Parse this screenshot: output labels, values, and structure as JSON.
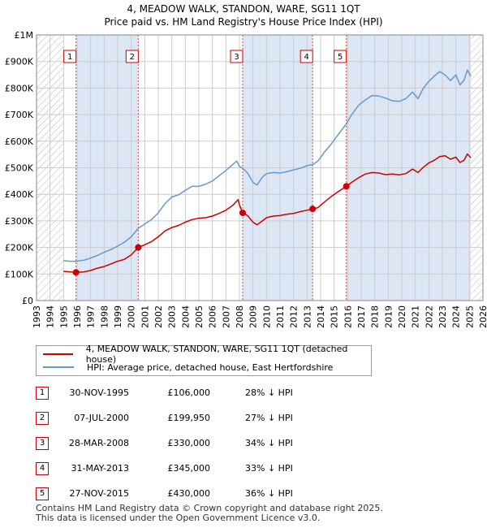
{
  "title_line1": "4, MEADOW WALK, STANDON, WARE, SG11 1QT",
  "title_line2": "Price paid vs. HM Land Registry's House Price Index (HPI)",
  "colors": {
    "property": "#cc0000",
    "hpi": "#6699cc",
    "shade": "#dde6f4",
    "grid": "#cccccc",
    "hatch": "#b8b8b8"
  },
  "legend": {
    "property_label": "4, MEADOW WALK, STANDON, WARE, SG11 1QT (detached house)",
    "hpi_label": "HPI: Average price, detached house, East Hertfordshire"
  },
  "sales": [
    {
      "num": "1",
      "date": "30-NOV-1995",
      "price": "£106,000",
      "hpi": "28% ↓ HPI"
    },
    {
      "num": "2",
      "date": "07-JUL-2000",
      "price": "£199,950",
      "hpi": "27% ↓ HPI"
    },
    {
      "num": "3",
      "date": "28-MAR-2008",
      "price": "£330,000",
      "hpi": "34% ↓ HPI"
    },
    {
      "num": "4",
      "date": "31-MAY-2013",
      "price": "£345,000",
      "hpi": "33% ↓ HPI"
    },
    {
      "num": "5",
      "date": "27-NOV-2015",
      "price": "£430,000",
      "hpi": "36% ↓ HPI"
    }
  ],
  "footer_line1": "Contains HM Land Registry data © Crown copyright and database right 2025.",
  "footer_line2": "This data is licensed under the Open Government Licence v3.0.",
  "chart_data": {
    "type": "line",
    "title": "4, MEADOW WALK, STANDON, WARE, SG11 1QT",
    "subtitle": "Price paid vs. HM Land Registry's House Price Index (HPI)",
    "xlabel": "",
    "ylabel": "",
    "xlim": [
      1993,
      2026
    ],
    "ylim": [
      0,
      1000000
    ],
    "x_ticks": [
      "1993",
      "1994",
      "1995",
      "1996",
      "1997",
      "1998",
      "1999",
      "2000",
      "2001",
      "2002",
      "2003",
      "2004",
      "2005",
      "2006",
      "2007",
      "2008",
      "2009",
      "2010",
      "2011",
      "2012",
      "2013",
      "2014",
      "2015",
      "2016",
      "2017",
      "2018",
      "2019",
      "2020",
      "2021",
      "2022",
      "2023",
      "2024",
      "2025",
      "2026"
    ],
    "y_ticks": [
      {
        "value": 0,
        "label": "£0"
      },
      {
        "value": 100000,
        "label": "£100K"
      },
      {
        "value": 200000,
        "label": "£200K"
      },
      {
        "value": 300000,
        "label": "£300K"
      },
      {
        "value": 400000,
        "label": "£400K"
      },
      {
        "value": 500000,
        "label": "£500K"
      },
      {
        "value": 600000,
        "label": "£600K"
      },
      {
        "value": 700000,
        "label": "£700K"
      },
      {
        "value": 800000,
        "label": "£800K"
      },
      {
        "value": 900000,
        "label": "£900K"
      },
      {
        "value": 1000000,
        "label": "£1M"
      }
    ],
    "hatched_regions": [
      [
        1993,
        1995.0
      ],
      [
        2025.1,
        2026
      ]
    ],
    "shaded_regions": [
      [
        1995.92,
        2000.52
      ],
      [
        2008.24,
        2013.41
      ],
      [
        2015.9,
        2025.1
      ]
    ],
    "sale_markers": [
      {
        "label": "1",
        "x": 1995.92,
        "y": 106000
      },
      {
        "label": "2",
        "x": 2000.52,
        "y": 199950
      },
      {
        "label": "3",
        "x": 2008.24,
        "y": 330000
      },
      {
        "label": "4",
        "x": 2013.41,
        "y": 345000
      },
      {
        "label": "5",
        "x": 2015.9,
        "y": 430000
      }
    ],
    "grid": true,
    "legend_position": "bottom-left",
    "series": [
      {
        "name": "4, MEADOW WALK, STANDON, WARE, SG11 1QT (detached house)",
        "color": "#cc0000",
        "points": [
          [
            1995.0,
            110000
          ],
          [
            1995.5,
            108000
          ],
          [
            1995.92,
            106000
          ],
          [
            1996.5,
            108000
          ],
          [
            1997.0,
            113000
          ],
          [
            1997.5,
            122000
          ],
          [
            1998.0,
            128000
          ],
          [
            1998.5,
            138000
          ],
          [
            1999.0,
            148000
          ],
          [
            1999.5,
            155000
          ],
          [
            2000.0,
            172000
          ],
          [
            2000.52,
            199950
          ],
          [
            2001.0,
            210000
          ],
          [
            2001.5,
            222000
          ],
          [
            2002.0,
            240000
          ],
          [
            2002.5,
            262000
          ],
          [
            2003.0,
            275000
          ],
          [
            2003.5,
            283000
          ],
          [
            2004.0,
            295000
          ],
          [
            2004.5,
            305000
          ],
          [
            2005.0,
            310000
          ],
          [
            2005.5,
            312000
          ],
          [
            2006.0,
            318000
          ],
          [
            2006.5,
            328000
          ],
          [
            2007.0,
            340000
          ],
          [
            2007.5,
            358000
          ],
          [
            2007.9,
            380000
          ],
          [
            2008.0,
            360000
          ],
          [
            2008.24,
            330000
          ],
          [
            2008.6,
            320000
          ],
          [
            2009.0,
            295000
          ],
          [
            2009.3,
            285000
          ],
          [
            2009.7,
            300000
          ],
          [
            2010.0,
            312000
          ],
          [
            2010.5,
            318000
          ],
          [
            2011.0,
            320000
          ],
          [
            2011.5,
            325000
          ],
          [
            2012.0,
            328000
          ],
          [
            2012.5,
            335000
          ],
          [
            2013.0,
            340000
          ],
          [
            2013.41,
            345000
          ],
          [
            2013.8,
            350000
          ],
          [
            2014.3,
            372000
          ],
          [
            2014.8,
            392000
          ],
          [
            2015.3,
            410000
          ],
          [
            2015.9,
            430000
          ],
          [
            2016.3,
            445000
          ],
          [
            2016.8,
            462000
          ],
          [
            2017.3,
            476000
          ],
          [
            2017.8,
            482000
          ],
          [
            2018.3,
            480000
          ],
          [
            2018.8,
            474000
          ],
          [
            2019.3,
            476000
          ],
          [
            2019.8,
            473000
          ],
          [
            2020.3,
            478000
          ],
          [
            2020.8,
            495000
          ],
          [
            2021.2,
            482000
          ],
          [
            2021.6,
            502000
          ],
          [
            2022.0,
            518000
          ],
          [
            2022.4,
            528000
          ],
          [
            2022.8,
            542000
          ],
          [
            2023.2,
            545000
          ],
          [
            2023.6,
            532000
          ],
          [
            2024.0,
            540000
          ],
          [
            2024.3,
            520000
          ],
          [
            2024.6,
            528000
          ],
          [
            2024.85,
            552000
          ],
          [
            2025.1,
            538000
          ]
        ]
      },
      {
        "name": "HPI: Average price, detached house, East Hertfordshire",
        "color": "#6699cc",
        "points": [
          [
            1995.0,
            150000
          ],
          [
            1995.5,
            148000
          ],
          [
            1995.92,
            148000
          ],
          [
            1996.5,
            152000
          ],
          [
            1997.0,
            160000
          ],
          [
            1997.5,
            170000
          ],
          [
            1998.0,
            182000
          ],
          [
            1998.5,
            192000
          ],
          [
            1999.0,
            205000
          ],
          [
            1999.5,
            220000
          ],
          [
            2000.0,
            240000
          ],
          [
            2000.52,
            272000
          ],
          [
            2001.0,
            288000
          ],
          [
            2001.5,
            305000
          ],
          [
            2002.0,
            330000
          ],
          [
            2002.5,
            365000
          ],
          [
            2003.0,
            390000
          ],
          [
            2003.5,
            398000
          ],
          [
            2004.0,
            415000
          ],
          [
            2004.5,
            430000
          ],
          [
            2005.0,
            430000
          ],
          [
            2005.5,
            438000
          ],
          [
            2006.0,
            450000
          ],
          [
            2006.5,
            470000
          ],
          [
            2007.0,
            490000
          ],
          [
            2007.5,
            512000
          ],
          [
            2007.8,
            525000
          ],
          [
            2008.0,
            505000
          ],
          [
            2008.24,
            498000
          ],
          [
            2008.6,
            480000
          ],
          [
            2009.0,
            445000
          ],
          [
            2009.3,
            435000
          ],
          [
            2009.7,
            465000
          ],
          [
            2010.0,
            478000
          ],
          [
            2010.5,
            482000
          ],
          [
            2011.0,
            480000
          ],
          [
            2011.5,
            485000
          ],
          [
            2012.0,
            492000
          ],
          [
            2012.5,
            498000
          ],
          [
            2013.0,
            508000
          ],
          [
            2013.41,
            512000
          ],
          [
            2013.8,
            525000
          ],
          [
            2014.3,
            560000
          ],
          [
            2014.8,
            590000
          ],
          [
            2015.3,
            625000
          ],
          [
            2015.9,
            665000
          ],
          [
            2016.3,
            700000
          ],
          [
            2016.8,
            735000
          ],
          [
            2017.3,
            755000
          ],
          [
            2017.8,
            772000
          ],
          [
            2018.3,
            770000
          ],
          [
            2018.8,
            762000
          ],
          [
            2019.3,
            752000
          ],
          [
            2019.8,
            750000
          ],
          [
            2020.3,
            760000
          ],
          [
            2020.8,
            785000
          ],
          [
            2021.2,
            760000
          ],
          [
            2021.6,
            800000
          ],
          [
            2022.0,
            825000
          ],
          [
            2022.4,
            845000
          ],
          [
            2022.8,
            862000
          ],
          [
            2023.2,
            850000
          ],
          [
            2023.6,
            828000
          ],
          [
            2024.0,
            850000
          ],
          [
            2024.3,
            812000
          ],
          [
            2024.6,
            830000
          ],
          [
            2024.85,
            868000
          ],
          [
            2025.1,
            845000
          ]
        ]
      }
    ]
  }
}
